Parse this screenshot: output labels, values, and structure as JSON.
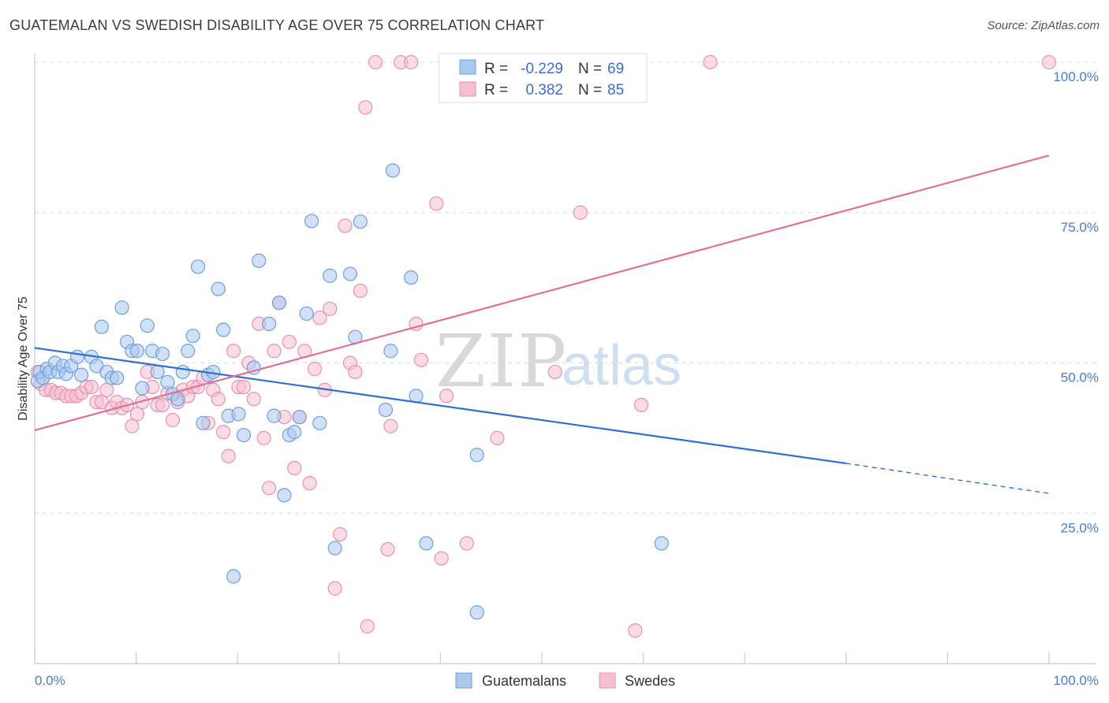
{
  "header": {
    "title": "GUATEMALAN VS SWEDISH DISABILITY AGE OVER 75 CORRELATION CHART",
    "source": "Source: ZipAtlas.com"
  },
  "watermark": {
    "zip": "ZIP",
    "atlas": "atlas"
  },
  "legend": {
    "rows": [
      {
        "r_label": "R =",
        "r_value": "-0.229",
        "n_label": "N =",
        "n_value": "69"
      },
      {
        "r_label": "R =",
        "r_value": "0.382",
        "n_label": "N =",
        "n_value": "85"
      }
    ]
  },
  "bottom_legend": {
    "guatemalans": "Guatemalans",
    "swedes": "Swedes"
  },
  "chart_data": {
    "type": "scatter",
    "title": "GUATEMALAN VS SWEDISH DISABILITY AGE OVER 75 CORRELATION CHART",
    "xlabel": "",
    "ylabel": "Disability Age Over 75",
    "xlim": [
      0,
      100
    ],
    "ylim": [
      0,
      100
    ],
    "x_tick_labels": [
      "0.0%",
      "100.0%"
    ],
    "y_ticks": [
      25,
      50,
      75,
      100
    ],
    "y_tick_labels": [
      "25.0%",
      "50.0%",
      "75.0%",
      "100.0%"
    ],
    "grid": true,
    "colors": {
      "guatemalans_fill": "#aac8f0",
      "guatemalans_stroke": "#6f9fdc",
      "guatemalans_line": "#2f6fcf",
      "swedes_fill": "#f6bfd0",
      "swedes_stroke": "#e891ad",
      "swedes_line": "#e0709a"
    },
    "series": [
      {
        "name": "Guatemalans",
        "r": -0.229,
        "n": 69,
        "trend": {
          "x_start": 0,
          "y_start": 52.5,
          "x_solid_end": 80,
          "y_solid_end": 33.3,
          "x_end": 100,
          "y_end": 28.3
        },
        "points": [
          [
            0.3,
            47
          ],
          [
            0.5,
            48.5
          ],
          [
            0.8,
            47.5
          ],
          [
            1.2,
            49
          ],
          [
            1.5,
            48.5
          ],
          [
            2,
            50
          ],
          [
            2.3,
            48.5
          ],
          [
            2.8,
            49.5
          ],
          [
            3.1,
            48.2
          ],
          [
            3.6,
            49.5
          ],
          [
            4.2,
            51
          ],
          [
            4.6,
            48
          ],
          [
            5.6,
            51
          ],
          [
            6.1,
            49.5
          ],
          [
            6.6,
            56
          ],
          [
            7.1,
            48.5
          ],
          [
            7.6,
            47.5
          ],
          [
            8.1,
            47.5
          ],
          [
            8.6,
            59.2
          ],
          [
            9.1,
            53.5
          ],
          [
            9.6,
            52
          ],
          [
            10.1,
            52
          ],
          [
            10.6,
            45.8
          ],
          [
            11.1,
            56.2
          ],
          [
            11.6,
            52
          ],
          [
            12.1,
            48.5
          ],
          [
            12.6,
            51.5
          ],
          [
            13.1,
            46.8
          ],
          [
            13.6,
            44.8
          ],
          [
            14.1,
            44
          ],
          [
            14.6,
            48.5
          ],
          [
            15.1,
            52
          ],
          [
            15.6,
            54.5
          ],
          [
            16.1,
            66
          ],
          [
            16.6,
            40
          ],
          [
            17.1,
            48
          ],
          [
            17.6,
            48.5
          ],
          [
            18.1,
            62.3
          ],
          [
            18.6,
            55.5
          ],
          [
            19.1,
            41.2
          ],
          [
            19.6,
            14.5
          ],
          [
            20.1,
            41.5
          ],
          [
            20.6,
            38
          ],
          [
            21.6,
            49.2
          ],
          [
            22.1,
            67
          ],
          [
            23.1,
            56.5
          ],
          [
            23.6,
            41.2
          ],
          [
            24.1,
            60
          ],
          [
            24.6,
            28
          ],
          [
            25.1,
            38
          ],
          [
            25.6,
            38.5
          ],
          [
            26.1,
            41
          ],
          [
            26.8,
            58.2
          ],
          [
            27.3,
            73.6
          ],
          [
            28.1,
            40
          ],
          [
            29.1,
            64.5
          ],
          [
            29.6,
            19.2
          ],
          [
            31.1,
            64.8
          ],
          [
            31.6,
            54.3
          ],
          [
            32.1,
            73.5
          ],
          [
            34.6,
            42.2
          ],
          [
            35.1,
            52
          ],
          [
            37.6,
            44.5
          ],
          [
            35.3,
            82
          ],
          [
            37.1,
            64.2
          ],
          [
            38.6,
            20
          ],
          [
            43.6,
            34.7
          ],
          [
            43.6,
            8.5
          ],
          [
            61.8,
            20
          ]
        ]
      },
      {
        "name": "Swedes",
        "r": 0.382,
        "n": 85,
        "trend": {
          "x_start": 0,
          "y_start": 38.8,
          "x_end": 100,
          "y_end": 84.5
        },
        "points": [
          [
            0.3,
            48.5
          ],
          [
            0.6,
            46.5
          ],
          [
            1.1,
            45.5
          ],
          [
            1.6,
            45.5
          ],
          [
            2.1,
            45
          ],
          [
            2.6,
            45
          ],
          [
            3.1,
            44.5
          ],
          [
            3.6,
            44.5
          ],
          [
            4.1,
            44.5
          ],
          [
            4.6,
            45
          ],
          [
            5.1,
            46
          ],
          [
            5.6,
            46
          ],
          [
            6.1,
            43.5
          ],
          [
            6.6,
            43.5
          ],
          [
            7.1,
            45.5
          ],
          [
            7.6,
            42.5
          ],
          [
            8.1,
            43.5
          ],
          [
            8.6,
            42.5
          ],
          [
            9.1,
            43
          ],
          [
            9.6,
            39.5
          ],
          [
            10.1,
            41.5
          ],
          [
            10.6,
            43.5
          ],
          [
            11.1,
            48.5
          ],
          [
            11.6,
            46
          ],
          [
            12.1,
            43
          ],
          [
            12.6,
            43
          ],
          [
            13.1,
            45
          ],
          [
            13.6,
            40.5
          ],
          [
            14.1,
            43.5
          ],
          [
            14.6,
            45.5
          ],
          [
            15.1,
            44.5
          ],
          [
            15.6,
            46
          ],
          [
            16.1,
            46
          ],
          [
            16.6,
            47.5
          ],
          [
            17.1,
            40
          ],
          [
            17.6,
            45.5
          ],
          [
            18.1,
            44
          ],
          [
            18.6,
            38.5
          ],
          [
            19.1,
            34.5
          ],
          [
            19.6,
            52
          ],
          [
            20.1,
            46
          ],
          [
            20.6,
            46
          ],
          [
            21.1,
            50
          ],
          [
            21.6,
            44
          ],
          [
            22.1,
            56.5
          ],
          [
            22.6,
            37.5
          ],
          [
            23.1,
            29.2
          ],
          [
            23.6,
            52
          ],
          [
            24.1,
            60
          ],
          [
            24.6,
            41
          ],
          [
            25.1,
            53.5
          ],
          [
            25.6,
            32.5
          ],
          [
            26.1,
            41
          ],
          [
            26.6,
            52
          ],
          [
            27.1,
            30
          ],
          [
            27.6,
            49
          ],
          [
            28.1,
            57.5
          ],
          [
            28.6,
            45.5
          ],
          [
            29.1,
            59
          ],
          [
            29.6,
            12.5
          ],
          [
            30.1,
            21.5
          ],
          [
            30.6,
            72.8
          ],
          [
            31.1,
            50
          ],
          [
            31.6,
            48.5
          ],
          [
            32.1,
            62
          ],
          [
            32.6,
            92.5
          ],
          [
            32.8,
            6.2
          ],
          [
            33.6,
            100
          ],
          [
            34.8,
            19
          ],
          [
            35.1,
            39.5
          ],
          [
            36.1,
            100
          ],
          [
            37.1,
            100
          ],
          [
            37.6,
            56.5
          ],
          [
            38.1,
            50.5
          ],
          [
            39.6,
            76.5
          ],
          [
            40.1,
            17.5
          ],
          [
            40.6,
            44.5
          ],
          [
            42.6,
            20
          ],
          [
            45.6,
            37.5
          ],
          [
            51.3,
            48.5
          ],
          [
            53.8,
            75
          ],
          [
            59.2,
            5.5
          ],
          [
            59.8,
            43
          ],
          [
            66.6,
            100
          ],
          [
            100,
            100
          ]
        ]
      }
    ]
  }
}
